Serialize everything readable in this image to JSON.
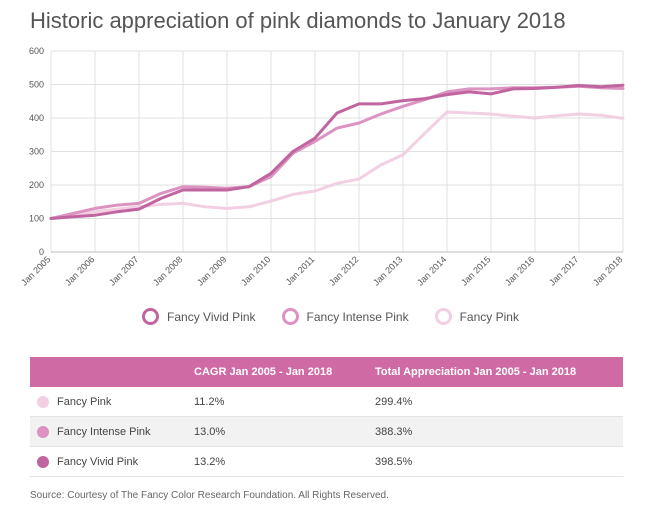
{
  "title": "Historic appreciation of pink diamonds to January 2018",
  "chart_data": {
    "type": "line",
    "title": "Historic appreciation of pink diamonds to January 2018",
    "xlabel": "",
    "ylabel": "",
    "ylim": [
      0,
      600
    ],
    "yticks": [
      0,
      100,
      200,
      300,
      400,
      500,
      600
    ],
    "xlim": [
      2005,
      2018
    ],
    "xticks": [
      2005,
      2006,
      2007,
      2008,
      2009,
      2010,
      2011,
      2012,
      2013,
      2014,
      2015,
      2016,
      2017,
      2018
    ],
    "xtick_labels": [
      "Jan 2005",
      "Jan 2006",
      "Jan 2007",
      "Jan 2008",
      "Jan 2009",
      "Jan 2010",
      "Jan 2011",
      "Jan 2012",
      "Jan 2013",
      "Jan 2014",
      "Jan 2015",
      "Jan 2016",
      "Jan 2017",
      "Jan 2018"
    ],
    "grid": true,
    "legend_position": "bottom-center",
    "series": [
      {
        "name": "Fancy Vivid Pink",
        "color": "#c0659f",
        "x": [
          2005,
          2005.5,
          2006,
          2006.5,
          2007,
          2007.5,
          2008,
          2008.5,
          2009,
          2009.5,
          2010,
          2010.5,
          2011,
          2011.5,
          2012,
          2012.5,
          2013,
          2013.5,
          2014,
          2014.5,
          2015,
          2015.5,
          2016,
          2016.5,
          2017,
          2017.5,
          2018
        ],
        "values": [
          100,
          105,
          110,
          120,
          128,
          160,
          185,
          185,
          185,
          195,
          235,
          300,
          340,
          415,
          442,
          442,
          452,
          458,
          470,
          478,
          472,
          487,
          488,
          492,
          497,
          493,
          498
        ]
      },
      {
        "name": "Fancy Intense Pink",
        "color": "#dc93c1",
        "x": [
          2005,
          2005.5,
          2006,
          2006.5,
          2007,
          2007.5,
          2008,
          2008.5,
          2009,
          2009.5,
          2010,
          2010.5,
          2011,
          2011.5,
          2012,
          2012.5,
          2013,
          2013.5,
          2014,
          2014.5,
          2015,
          2015.5,
          2016,
          2016.5,
          2017,
          2017.5,
          2018
        ],
        "values": [
          100,
          115,
          130,
          140,
          145,
          175,
          195,
          193,
          190,
          195,
          225,
          295,
          330,
          370,
          385,
          412,
          435,
          455,
          478,
          487,
          487,
          490,
          490,
          492,
          495,
          490,
          488
        ]
      },
      {
        "name": "Fancy Pink",
        "color": "#f2cfe2",
        "x": [
          2005,
          2005.5,
          2006,
          2006.5,
          2007,
          2007.5,
          2008,
          2008.5,
          2009,
          2009.5,
          2010,
          2010.5,
          2011,
          2011.5,
          2012,
          2012.5,
          2013,
          2013.5,
          2014,
          2014.5,
          2015,
          2015.5,
          2016,
          2016.5,
          2017,
          2017.5,
          2018
        ],
        "values": [
          100,
          110,
          120,
          128,
          135,
          142,
          145,
          135,
          130,
          135,
          152,
          172,
          182,
          205,
          218,
          260,
          290,
          355,
          418,
          415,
          412,
          405,
          400,
          407,
          412,
          408,
          399
        ]
      }
    ]
  },
  "table": {
    "headers": [
      "",
      "CAGR Jan 2005 - Jan 2018",
      "Total Appreciation Jan 2005 - Jan 2018"
    ],
    "rows": [
      {
        "name": "Fancy Pink",
        "cagr": "11.2%",
        "total": "299.4%",
        "color": "#f2cfe2"
      },
      {
        "name": "Fancy Intense Pink",
        "cagr": "13.0%",
        "total": "388.3%",
        "color": "#dc93c1"
      },
      {
        "name": "Fancy Vivid Pink",
        "cagr": "13.2%",
        "total": "398.5%",
        "color": "#c0659f"
      }
    ]
  },
  "source": "Source: Courtesy of The Fancy Color Research Foundation. All Rights Reserved."
}
